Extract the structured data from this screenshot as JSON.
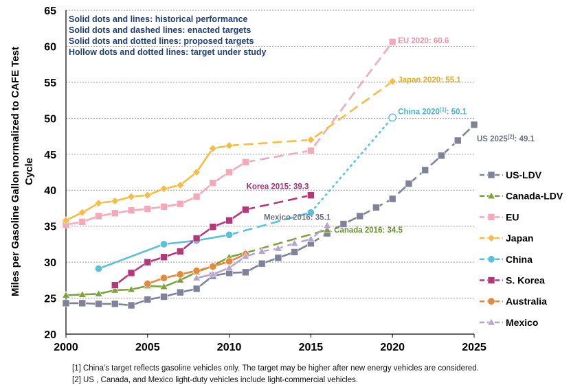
{
  "chart_data": {
    "type": "line",
    "title": "",
    "ylabel": "Miles per Gasoline Gallon normalized to CAFE Test Cycle",
    "xlabel": "",
    "xlim": [
      2000,
      2025
    ],
    "ylim": [
      20,
      65
    ],
    "xticks": [
      "2000",
      "2005",
      "2010",
      "2015",
      "2020",
      "2025"
    ],
    "yticks": [
      "20",
      "25",
      "30",
      "35",
      "40",
      "45",
      "50",
      "55",
      "60",
      "65"
    ],
    "grid": "horizontal dashed",
    "legend_position": "right",
    "style_notes": [
      "Solid dots and lines: historical performance",
      "Solid dots and dashed lines: enacted targets",
      "Solid dots and dotted lines: proposed targets",
      "Hollow dots and dotted lines: target under study"
    ],
    "series": [
      {
        "name": "US-LDV",
        "color": "#7f8399",
        "marker": "square",
        "historical": [
          [
            2000,
            24.3
          ],
          [
            2001,
            24.3
          ],
          [
            2002,
            24.2
          ],
          [
            2003,
            24.2
          ],
          [
            2004,
            24.0
          ],
          [
            2005,
            24.8
          ],
          [
            2006,
            25.2
          ],
          [
            2007,
            25.8
          ],
          [
            2008,
            26.3
          ],
          [
            2009,
            28.1
          ],
          [
            2010,
            28.5
          ],
          [
            2011,
            28.6
          ],
          [
            2012,
            29.8
          ],
          [
            2013,
            30.6
          ],
          [
            2014,
            31.4
          ],
          [
            2015,
            32.6
          ]
        ],
        "enacted": [
          [
            2015,
            32.6
          ],
          [
            2016,
            34.0
          ],
          [
            2017,
            35.3
          ],
          [
            2018,
            36.4
          ],
          [
            2019,
            37.6
          ],
          [
            2020,
            38.8
          ],
          [
            2021,
            40.9
          ],
          [
            2022,
            42.8
          ],
          [
            2023,
            44.8
          ],
          [
            2024,
            46.9
          ],
          [
            2025,
            49.1
          ]
        ],
        "label": "US 2025[2]: 49.1"
      },
      {
        "name": "Canada-LDV",
        "color": "#7ea23c",
        "marker": "triangle",
        "historical": [
          [
            2000,
            25.4
          ],
          [
            2001,
            25.5
          ],
          [
            2002,
            25.6
          ],
          [
            2003,
            26.1
          ],
          [
            2004,
            26.2
          ],
          [
            2005,
            26.7
          ],
          [
            2006,
            26.6
          ],
          [
            2007,
            27.5
          ],
          [
            2008,
            28.6
          ],
          [
            2009,
            29.5
          ],
          [
            2010,
            30.7
          ],
          [
            2011,
            31.3
          ]
        ],
        "enacted": [
          [
            2011,
            31.3
          ],
          [
            2016,
            34.5
          ]
        ],
        "label": "Canada 2016: 34.5"
      },
      {
        "name": "EU",
        "color": "#f4a9bb",
        "marker": "square",
        "historical": [
          [
            2000,
            35.2
          ],
          [
            2001,
            35.6
          ],
          [
            2002,
            36.4
          ],
          [
            2003,
            36.8
          ],
          [
            2004,
            37.2
          ],
          [
            2005,
            37.4
          ],
          [
            2006,
            37.7
          ],
          [
            2007,
            38.1
          ],
          [
            2008,
            39.1
          ],
          [
            2009,
            41.0
          ],
          [
            2010,
            42.5
          ],
          [
            2011,
            43.9
          ]
        ],
        "enacted": [
          [
            2011,
            43.9
          ],
          [
            2015,
            45.5
          ],
          [
            2020,
            60.6
          ]
        ],
        "label": "EU 2020: 60.6"
      },
      {
        "name": "Japan",
        "color": "#f5bd43",
        "marker": "diamond",
        "historical": [
          [
            2000,
            35.8
          ],
          [
            2001,
            36.9
          ],
          [
            2002,
            38.2
          ],
          [
            2003,
            38.5
          ],
          [
            2004,
            39.1
          ],
          [
            2005,
            39.3
          ],
          [
            2006,
            40.2
          ],
          [
            2007,
            40.7
          ],
          [
            2008,
            42.5
          ],
          [
            2009,
            45.8
          ],
          [
            2010,
            46.2
          ]
        ],
        "enacted": [
          [
            2010,
            46.2
          ],
          [
            2015,
            47.0
          ],
          [
            2020,
            55.1
          ]
        ],
        "label": "Japan 2020: 55.1"
      },
      {
        "name": "China",
        "color": "#5bc0d8",
        "marker": "circle",
        "historical": [
          [
            2002,
            29.1
          ],
          [
            2006,
            32.5
          ],
          [
            2008,
            33.0
          ],
          [
            2010,
            33.8
          ]
        ],
        "enacted": [
          [
            2010,
            33.8
          ],
          [
            2015,
            36.9
          ]
        ],
        "study": [
          [
            2015,
            36.9
          ],
          [
            2020,
            50.1
          ]
        ],
        "label": "China 2020[1]: 50.1"
      },
      {
        "name": "S. Korea",
        "color": "#b2387a",
        "marker": "square",
        "historical": [
          [
            2003,
            26.8
          ],
          [
            2004,
            28.5
          ],
          [
            2005,
            30.0
          ],
          [
            2006,
            30.7
          ],
          [
            2007,
            31.5
          ],
          [
            2008,
            33.3
          ],
          [
            2009,
            34.9
          ],
          [
            2010,
            35.8
          ],
          [
            2011,
            37.3
          ]
        ],
        "enacted": [
          [
            2011,
            37.3
          ],
          [
            2015,
            39.3
          ]
        ],
        "label": "Korea 2015: 39.3"
      },
      {
        "name": "Australia",
        "color": "#e48a3e",
        "marker": "circle",
        "historical": [
          [
            2005,
            27.0
          ],
          [
            2006,
            27.8
          ],
          [
            2007,
            28.3
          ],
          [
            2008,
            28.8
          ],
          [
            2009,
            29.4
          ],
          [
            2010,
            30.1
          ],
          [
            2011,
            31.1
          ]
        ],
        "label": ""
      },
      {
        "name": "Mexico",
        "color": "#b6a4cf",
        "marker": "triangle",
        "historical": [
          [
            2008,
            27.8
          ],
          [
            2009,
            28.3
          ],
          [
            2010,
            29.2
          ],
          [
            2011,
            30.8
          ]
        ],
        "enacted": [
          [
            2011,
            30.8
          ],
          [
            2012,
            31.5
          ],
          [
            2013,
            31.9
          ],
          [
            2014,
            32.6
          ],
          [
            2015,
            33.2
          ],
          [
            2016,
            35.1
          ]
        ],
        "label": "Mexico 2016: 35.1"
      }
    ]
  },
  "footnotes": {
    "f1": "[1] China's target reflects gasoline vehicles only. The target may be higher after new energy vehicles are considered.",
    "f2": "[2] US , Canada, and Mexico light-duty vehicles include light-commercial vehicles."
  }
}
